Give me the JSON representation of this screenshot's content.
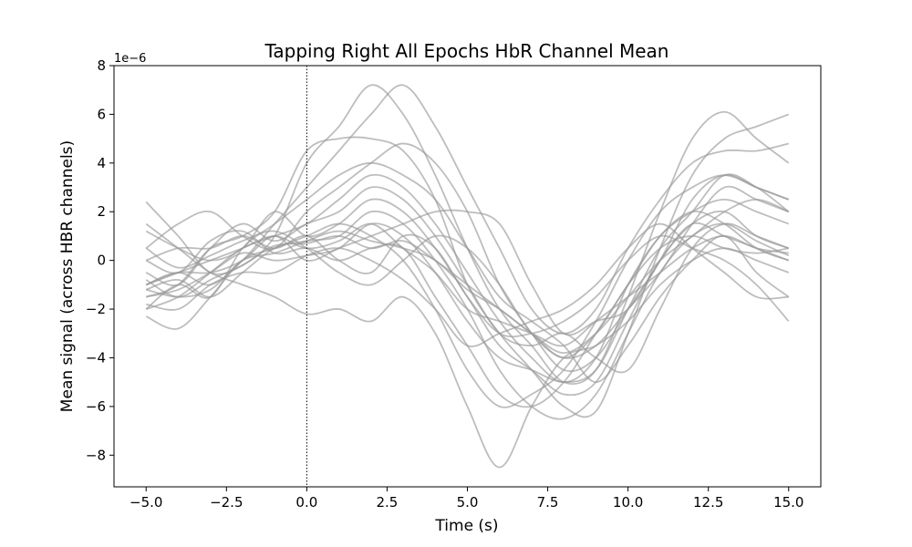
{
  "chart_data": {
    "type": "line",
    "title": "Tapping Right All Epochs HbR Channel Mean",
    "xlabel": "Time (s)",
    "ylabel": "Mean signal (across HBR channels)",
    "y_scale_label": "1e−6",
    "xlim": [
      -6.0,
      16.0
    ],
    "ylim": [
      -9.3,
      8.0
    ],
    "x_ticks": [
      -5.0,
      -2.5,
      0.0,
      2.5,
      5.0,
      7.5,
      10.0,
      12.5,
      15.0
    ],
    "x_tick_labels": [
      "−5.0",
      "−2.5",
      "0.0",
      "2.5",
      "5.0",
      "7.5",
      "10.0",
      "12.5",
      "15.0"
    ],
    "y_ticks": [
      -8,
      -6,
      -4,
      -2,
      0,
      2,
      4,
      6,
      8
    ],
    "y_tick_labels": [
      "−8",
      "−6",
      "−4",
      "−2",
      "0",
      "2",
      "4",
      "6",
      "8"
    ],
    "grid": false,
    "line_color": "#999999",
    "event_marker": {
      "x": 0.0,
      "style": "dotted",
      "color": "#000000"
    },
    "x": [
      -5,
      -4,
      -3,
      -2,
      -1,
      0,
      1,
      2,
      3,
      4,
      5,
      6,
      7,
      8,
      9,
      10,
      11,
      12,
      13,
      14,
      15
    ],
    "series": [
      {
        "values": [
          2.4,
          1.0,
          -0.5,
          -0.2,
          1.0,
          4.0,
          5.5,
          7.2,
          6.0,
          3.5,
          0.5,
          -2.0,
          -3.5,
          -5.0,
          -4.5,
          -1.5,
          2.0,
          5.0,
          6.1,
          5.0,
          4.0
        ]
      },
      {
        "values": [
          -1.5,
          -1.0,
          0.5,
          1.0,
          2.0,
          4.5,
          5.0,
          5.0,
          4.5,
          2.5,
          -1.0,
          -3.0,
          -4.5,
          -6.0,
          -6.2,
          -3.0,
          0.5,
          3.5,
          5.0,
          5.5,
          6.0
        ]
      },
      {
        "values": [
          -1.0,
          -0.5,
          -1.0,
          0.0,
          1.5,
          3.0,
          4.5,
          6.0,
          7.2,
          5.5,
          3.0,
          0.5,
          -2.0,
          -3.0,
          -2.0,
          0.5,
          2.5,
          4.0,
          4.5,
          4.5,
          4.8
        ]
      },
      {
        "values": [
          0.5,
          1.5,
          2.0,
          1.0,
          0.5,
          2.0,
          3.0,
          4.0,
          4.8,
          4.0,
          2.0,
          -1.0,
          -3.0,
          -4.5,
          -4.0,
          -2.0,
          0.0,
          2.5,
          3.5,
          3.0,
          2.5
        ]
      },
      {
        "values": [
          -2.0,
          -1.5,
          -0.5,
          0.5,
          1.0,
          1.5,
          2.5,
          3.5,
          3.0,
          1.5,
          -0.5,
          -2.5,
          -4.0,
          -5.0,
          -4.0,
          -1.0,
          1.0,
          2.0,
          1.5,
          0.5,
          0.0
        ]
      },
      {
        "values": [
          1.2,
          0.5,
          0.0,
          0.5,
          2.0,
          1.0,
          1.5,
          2.5,
          2.0,
          0.5,
          -1.5,
          -3.5,
          -4.5,
          -5.5,
          -5.0,
          -2.5,
          0.0,
          1.5,
          2.0,
          1.0,
          0.5
        ]
      },
      {
        "values": [
          -1.2,
          -0.8,
          -1.5,
          -0.5,
          0.5,
          0.8,
          1.0,
          2.0,
          1.5,
          0.0,
          -2.0,
          -4.5,
          -6.0,
          -6.5,
          -5.5,
          -3.0,
          -0.5,
          1.0,
          1.5,
          0.8,
          0.2
        ]
      },
      {
        "values": [
          0.0,
          -0.5,
          0.8,
          1.2,
          0.3,
          0.5,
          0.0,
          0.5,
          0.5,
          -1.5,
          -3.5,
          -5.5,
          -6.0,
          -5.0,
          -3.0,
          -1.0,
          1.0,
          2.0,
          2.5,
          2.0,
          1.5
        ]
      },
      {
        "values": [
          -2.3,
          -2.8,
          -1.5,
          0.0,
          0.5,
          1.0,
          1.5,
          1.0,
          0.0,
          -2.0,
          -4.5,
          -6.0,
          -5.5,
          -4.5,
          -2.5,
          0.0,
          2.0,
          3.0,
          3.5,
          3.0,
          2.5
        ]
      },
      {
        "values": [
          1.5,
          0.5,
          -0.5,
          -1.0,
          -1.5,
          -2.2,
          -2.0,
          -2.5,
          -1.5,
          -3.0,
          -6.0,
          -8.5,
          -6.0,
          -4.0,
          -3.5,
          -2.5,
          -1.0,
          0.0,
          0.5,
          0.0,
          -0.5
        ]
      },
      {
        "values": [
          -0.5,
          -1.0,
          0.5,
          1.5,
          0.8,
          1.5,
          2.0,
          3.0,
          2.5,
          1.0,
          -1.0,
          -3.0,
          -3.5,
          -3.0,
          -4.0,
          -4.5,
          -2.0,
          0.5,
          1.5,
          1.0,
          0.5
        ]
      },
      {
        "values": [
          -1.0,
          -0.5,
          -0.5,
          0.0,
          1.0,
          0.0,
          0.5,
          1.0,
          1.5,
          2.0,
          2.0,
          1.5,
          -1.0,
          -3.0,
          -2.5,
          -2.0,
          0.0,
          1.5,
          1.0,
          0.5,
          0.0
        ]
      },
      {
        "values": [
          0.5,
          -0.3,
          0.2,
          0.8,
          1.2,
          0.5,
          -0.5,
          -1.0,
          0.0,
          1.0,
          0.5,
          -1.0,
          -3.0,
          -4.0,
          -3.5,
          -2.0,
          -0.5,
          1.5,
          3.0,
          2.5,
          2.0
        ]
      },
      {
        "values": [
          -1.5,
          -1.2,
          -0.5,
          0.3,
          0.0,
          0.2,
          0.5,
          1.5,
          1.0,
          -0.5,
          -2.5,
          -4.0,
          -4.5,
          -5.0,
          -4.5,
          -2.0,
          0.5,
          2.0,
          3.5,
          3.0,
          2.0
        ]
      },
      {
        "values": [
          -0.8,
          -1.5,
          -0.8,
          -0.2,
          0.6,
          0.7,
          1.0,
          0.5,
          0.8,
          0.0,
          -1.0,
          -2.0,
          -3.0,
          -4.0,
          -3.0,
          -1.0,
          0.5,
          1.0,
          0.5,
          0.3,
          0.5
        ]
      },
      {
        "values": [
          -2.0,
          -1.0,
          -1.5,
          0.5,
          1.5,
          2.5,
          3.5,
          4.0,
          3.5,
          2.5,
          0.5,
          -1.5,
          -2.5,
          -3.5,
          -5.0,
          -3.5,
          -1.5,
          0.0,
          1.0,
          -0.5,
          -1.5
        ]
      },
      {
        "values": [
          0.0,
          0.5,
          0.5,
          1.0,
          0.5,
          1.0,
          0.0,
          -0.5,
          1.0,
          0.5,
          -1.5,
          -3.0,
          -3.0,
          -2.5,
          -1.5,
          0.0,
          1.0,
          0.5,
          0.0,
          -1.0,
          -2.5
        ]
      },
      {
        "values": [
          -1.0,
          -0.5,
          0.0,
          0.5,
          1.0,
          0.5,
          0.8,
          1.5,
          0.5,
          -0.5,
          -2.0,
          -2.5,
          -3.0,
          -3.5,
          -2.5,
          -1.5,
          -0.5,
          0.5,
          1.0,
          0.5,
          0.3
        ]
      },
      {
        "values": [
          -1.8,
          -2.0,
          -1.0,
          -0.5,
          -0.5,
          0.2,
          0.5,
          0.0,
          -0.8,
          -2.0,
          -3.5,
          -3.0,
          -2.5,
          -2.0,
          -1.0,
          0.5,
          1.5,
          0.5,
          -0.5,
          -1.5,
          -1.5
        ]
      },
      {
        "values": [
          -1.2,
          -1.5,
          -1.2,
          0.0,
          0.3,
          0.8,
          1.2,
          0.8,
          0.5,
          0.0,
          -1.2,
          -2.0,
          -3.0,
          -3.8,
          -3.0,
          -1.5,
          0.0,
          1.0,
          2.0,
          2.5,
          2.0
        ]
      }
    ]
  }
}
